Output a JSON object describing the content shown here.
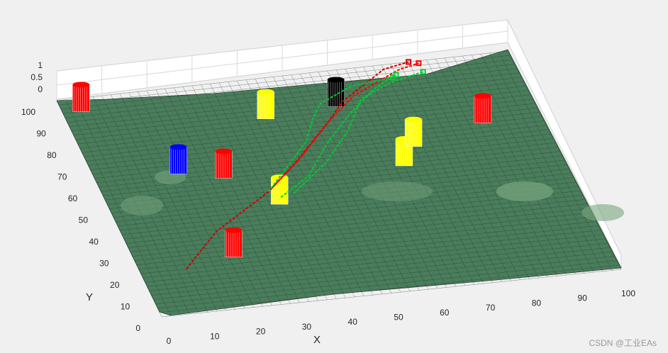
{
  "chart_data": {
    "type": "surface",
    "xlabel": "X",
    "ylabel": "Y",
    "xlim": [
      0,
      100
    ],
    "ylim": [
      0,
      100
    ],
    "zlim": [
      0,
      1
    ],
    "x_ticks": [
      "0",
      "10",
      "20",
      "30",
      "40",
      "50",
      "60",
      "70",
      "80",
      "90",
      "100"
    ],
    "y_ticks": [
      "0",
      "10",
      "20",
      "30",
      "40",
      "50",
      "60",
      "70",
      "80",
      "90",
      "100"
    ],
    "z_ticks": [
      "0",
      "0.5",
      "1"
    ],
    "grid": true,
    "surface_color": "#4a7d5c",
    "obstacles": [
      {
        "color": "#ff0000",
        "x": 4,
        "y": 94
      },
      {
        "color": "#0000ff",
        "x": 18,
        "y": 62
      },
      {
        "color": "#ff0000",
        "x": 27,
        "y": 58
      },
      {
        "color": "#ff0000",
        "x": 21,
        "y": 23
      },
      {
        "color": "#ffff00",
        "x": 42,
        "y": 82
      },
      {
        "color": "#ffff00",
        "x": 36,
        "y": 44
      },
      {
        "color": "#ffff00",
        "x": 66,
        "y": 55
      },
      {
        "color": "#ffff00",
        "x": 70,
        "y": 63
      },
      {
        "color": "#ff0000",
        "x": 87,
        "y": 70
      },
      {
        "color": "#000000",
        "x": 58,
        "y": 84
      }
    ],
    "paths": [
      {
        "color": "#cc0000",
        "points": [
          [
            10,
            20
          ],
          [
            20,
            35
          ],
          [
            35,
            50
          ],
          [
            44,
            62
          ],
          [
            55,
            78
          ],
          [
            60,
            86
          ],
          [
            72,
            98
          ],
          [
            78,
            100
          ]
        ]
      },
      {
        "color": "#ff0000",
        "points": [
          [
            35,
            50
          ],
          [
            45,
            63
          ],
          [
            55,
            78
          ],
          [
            63,
            88
          ],
          [
            75,
            97
          ],
          [
            80,
            99
          ]
        ]
      },
      {
        "color": "#00cc33",
        "points": [
          [
            35,
            50
          ],
          [
            48,
            70
          ],
          [
            52,
            80
          ],
          [
            55,
            86
          ],
          [
            63,
            92
          ],
          [
            73,
            94
          ]
        ]
      },
      {
        "color": "#00cc33",
        "points": [
          [
            40,
            48
          ],
          [
            50,
            60
          ],
          [
            58,
            73
          ],
          [
            64,
            86
          ],
          [
            72,
            92
          ],
          [
            80,
            95
          ]
        ]
      },
      {
        "color": "#00cc33",
        "points": [
          [
            37,
            47
          ],
          [
            45,
            55
          ],
          [
            52,
            68
          ],
          [
            60,
            80
          ],
          [
            68,
            90
          ],
          [
            74,
            95
          ]
        ]
      }
    ]
  },
  "watermark": "CSDN @工业EAs"
}
